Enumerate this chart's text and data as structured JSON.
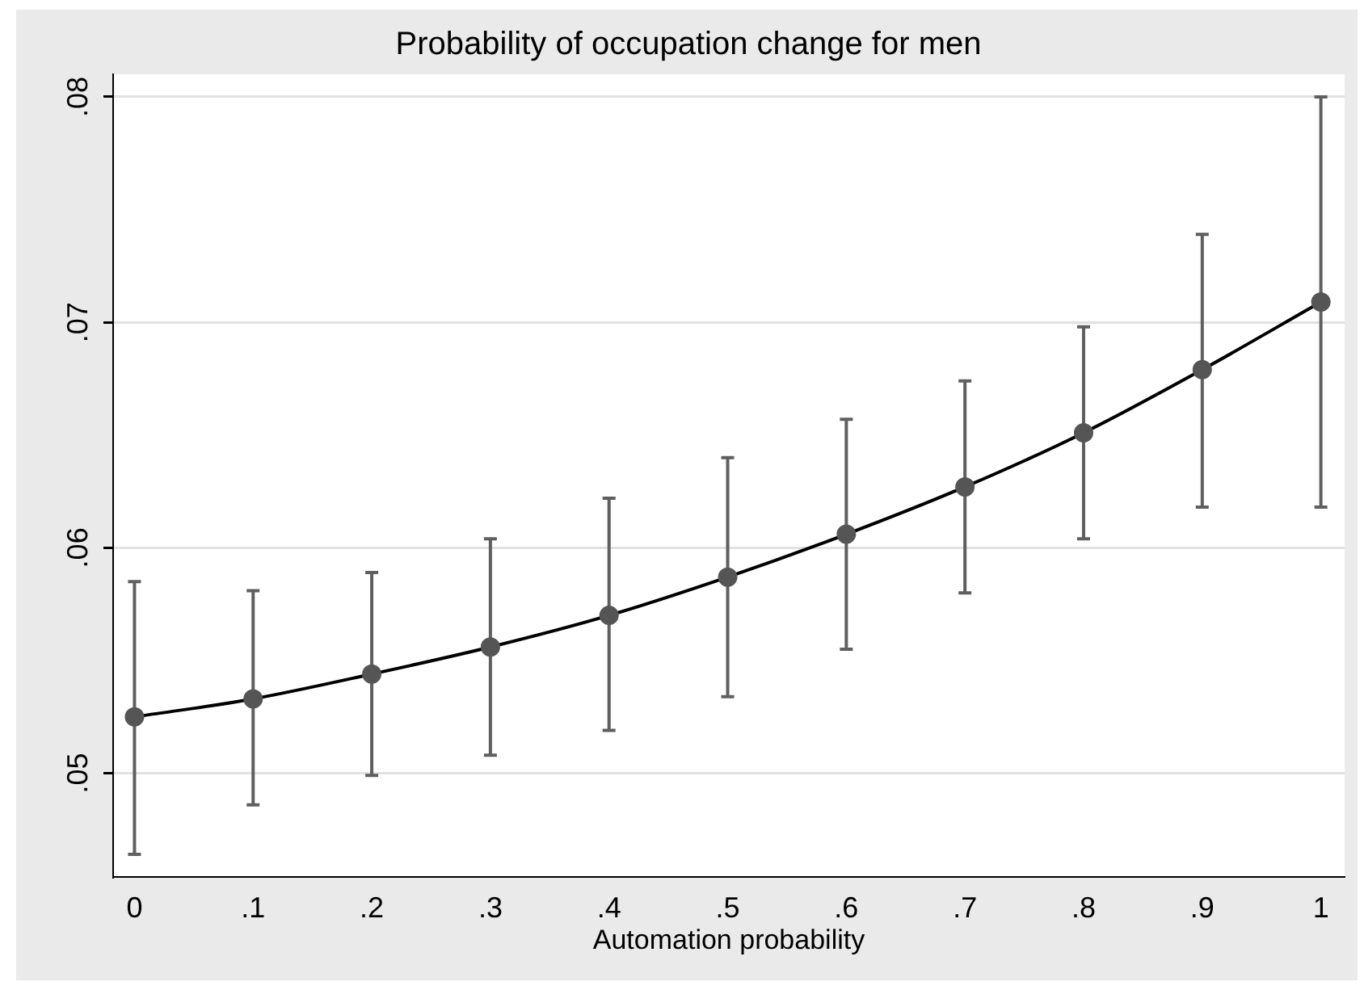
{
  "chart_data": {
    "type": "line",
    "title": "Probability of occupation change for men",
    "xlabel": "Automation probability",
    "x": [
      0,
      0.1,
      0.2,
      0.3,
      0.4,
      0.5,
      0.6,
      0.7,
      0.8,
      0.9,
      1
    ],
    "series": [
      {
        "color": "#000000",
        "values": [
          0.0525,
          0.0533,
          0.0544,
          0.0556,
          0.057,
          0.0587,
          0.0606,
          0.0627,
          0.0651,
          0.0679,
          0.0709
        ],
        "errors": [
          [
            0.0464,
            0.0585
          ],
          [
            0.0486,
            0.0581
          ],
          [
            0.0499,
            0.0589
          ],
          [
            0.0508,
            0.0604
          ],
          [
            0.0519,
            0.0622
          ],
          [
            0.0534,
            0.064
          ],
          [
            0.0555,
            0.0657
          ],
          [
            0.058,
            0.0674
          ],
          [
            0.0604,
            0.0698
          ],
          [
            0.0618,
            0.0739
          ],
          [
            0.0618,
            0.08
          ]
        ]
      }
    ],
    "xlim": [
      -0.018,
      1.02
    ],
    "xticks": [
      0,
      {
        "value": 0.1,
        "label": ".1"
      },
      {
        "value": 0.2,
        "label": ".2"
      },
      {
        "value": 0.3,
        "label": ".3"
      },
      {
        "value": 0.4,
        "label": ".4"
      },
      {
        "value": 0.5,
        "label": ".5"
      },
      {
        "value": 0.6,
        "label": ".6"
      },
      {
        "value": 0.7,
        "label": ".7"
      },
      {
        "value": 0.8,
        "label": ".8"
      },
      {
        "value": 0.9,
        "label": ".9"
      },
      1
    ],
    "ylim": [
      0.0454,
      0.081
    ],
    "yticks": [
      {
        "value": 0.05,
        "label": ".05"
      },
      {
        "value": 0.06,
        "label": ".06"
      },
      {
        "value": 0.07,
        "label": ".07"
      },
      {
        "value": 0.08,
        "label": ".08"
      }
    ],
    "grid": "y",
    "legend": false,
    "marker": "circle",
    "line_style": "solid"
  }
}
